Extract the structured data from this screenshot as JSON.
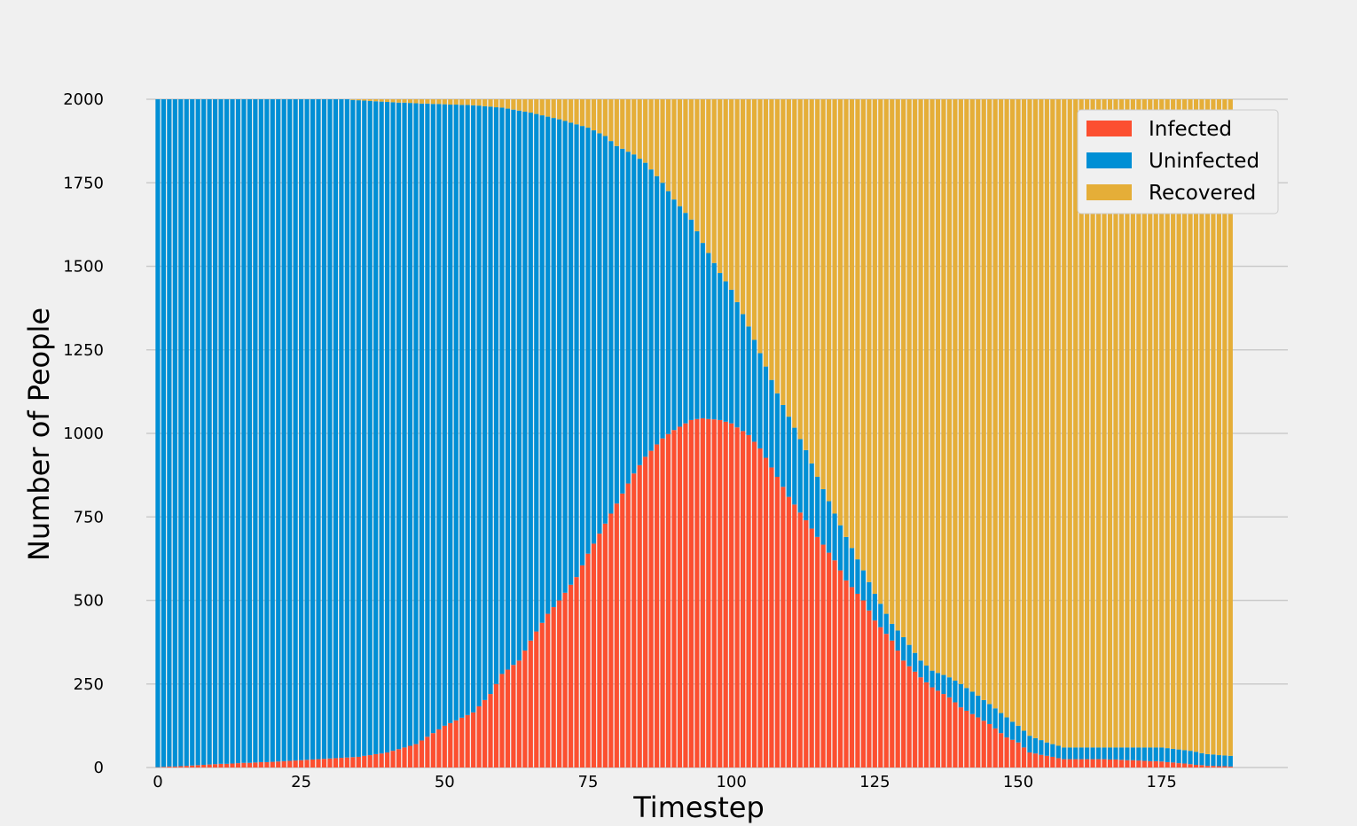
{
  "chart_data": {
    "type": "bar",
    "stacked": true,
    "xlabel": "Timestep",
    "ylabel": "Number of People",
    "xlim": [
      -2,
      197
    ],
    "ylim": [
      0,
      2000
    ],
    "xticks": [
      0,
      25,
      50,
      75,
      100,
      125,
      150,
      175
    ],
    "yticks": [
      0,
      250,
      500,
      750,
      1000,
      1250,
      1500,
      1750,
      2000
    ],
    "total_population": 2000,
    "grid": "horizontal",
    "legend_position": "top-right",
    "series": [
      {
        "name": "Infected",
        "color": "#fc4f30",
        "stack_order": 0
      },
      {
        "name": "Uninfected",
        "color": "#008fd5",
        "stack_order": 1
      },
      {
        "name": "Recovered",
        "color": "#e5ae38",
        "stack_order": 2
      }
    ],
    "infected_keyframes": [
      [
        0,
        1
      ],
      [
        5,
        5
      ],
      [
        10,
        10
      ],
      [
        20,
        17
      ],
      [
        30,
        27
      ],
      [
        35,
        32
      ],
      [
        40,
        45
      ],
      [
        45,
        70
      ],
      [
        50,
        125
      ],
      [
        55,
        165
      ],
      [
        58,
        220
      ],
      [
        60,
        280
      ],
      [
        63,
        320
      ],
      [
        65,
        380
      ],
      [
        68,
        460
      ],
      [
        70,
        500
      ],
      [
        73,
        570
      ],
      [
        75,
        640
      ],
      [
        78,
        730
      ],
      [
        80,
        790
      ],
      [
        83,
        880
      ],
      [
        85,
        930
      ],
      [
        88,
        985
      ],
      [
        90,
        1010
      ],
      [
        93,
        1040
      ],
      [
        95,
        1045
      ],
      [
        98,
        1040
      ],
      [
        100,
        1030
      ],
      [
        103,
        995
      ],
      [
        105,
        955
      ],
      [
        108,
        870
      ],
      [
        110,
        810
      ],
      [
        113,
        740
      ],
      [
        115,
        690
      ],
      [
        118,
        620
      ],
      [
        120,
        560
      ],
      [
        123,
        500
      ],
      [
        125,
        440
      ],
      [
        128,
        380
      ],
      [
        130,
        320
      ],
      [
        133,
        270
      ],
      [
        135,
        240
      ],
      [
        138,
        210
      ],
      [
        140,
        180
      ],
      [
        143,
        150
      ],
      [
        145,
        130
      ],
      [
        148,
        90
      ],
      [
        150,
        75
      ],
      [
        152,
        45
      ],
      [
        155,
        35
      ],
      [
        158,
        25
      ],
      [
        165,
        25
      ],
      [
        175,
        18
      ],
      [
        180,
        10
      ],
      [
        183,
        5
      ],
      [
        187,
        3
      ]
    ],
    "recovered_keyframes": [
      [
        0,
        0
      ],
      [
        33,
        0
      ],
      [
        35,
        3
      ],
      [
        40,
        8
      ],
      [
        45,
        12
      ],
      [
        50,
        15
      ],
      [
        55,
        18
      ],
      [
        60,
        25
      ],
      [
        65,
        40
      ],
      [
        70,
        60
      ],
      [
        73,
        75
      ],
      [
        75,
        85
      ],
      [
        78,
        110
      ],
      [
        80,
        140
      ],
      [
        83,
        165
      ],
      [
        85,
        190
      ],
      [
        88,
        250
      ],
      [
        90,
        300
      ],
      [
        93,
        360
      ],
      [
        95,
        430
      ],
      [
        98,
        520
      ],
      [
        100,
        570
      ],
      [
        103,
        680
      ],
      [
        105,
        760
      ],
      [
        108,
        880
      ],
      [
        110,
        950
      ],
      [
        113,
        1050
      ],
      [
        115,
        1130
      ],
      [
        118,
        1240
      ],
      [
        120,
        1310
      ],
      [
        123,
        1410
      ],
      [
        125,
        1480
      ],
      [
        128,
        1570
      ],
      [
        130,
        1610
      ],
      [
        133,
        1680
      ],
      [
        135,
        1710
      ],
      [
        138,
        1730
      ],
      [
        140,
        1750
      ],
      [
        143,
        1785
      ],
      [
        145,
        1810
      ],
      [
        148,
        1850
      ],
      [
        150,
        1875
      ],
      [
        152,
        1905
      ],
      [
        155,
        1925
      ],
      [
        158,
        1940
      ],
      [
        175,
        1940
      ],
      [
        180,
        1950
      ],
      [
        183,
        1960
      ],
      [
        187,
        1965
      ]
    ]
  }
}
